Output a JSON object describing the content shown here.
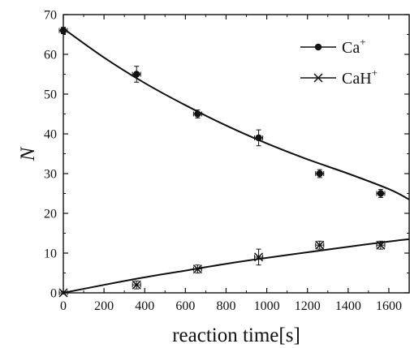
{
  "chart_data": {
    "type": "scatter",
    "title": "",
    "xlabel": "reaction time[s]",
    "ylabel": "N",
    "xlim": [
      0,
      1700
    ],
    "ylim": [
      0,
      70
    ],
    "x_ticks": [
      0,
      200,
      400,
      600,
      800,
      1000,
      1200,
      1400,
      1600
    ],
    "y_ticks": [
      0,
      10,
      20,
      30,
      40,
      50,
      60,
      70
    ],
    "grid": false,
    "legend_position": "top-right",
    "series": [
      {
        "name": "Ca",
        "name_sup": "+",
        "marker": "filled-circle",
        "x": [
          0,
          360,
          660,
          960,
          1260,
          1560
        ],
        "y": [
          66,
          55,
          45,
          39,
          30,
          25
        ],
        "yerr": [
          0.8,
          2,
          1,
          2,
          1,
          1
        ],
        "xerr": [
          20,
          20,
          20,
          20,
          20,
          20
        ],
        "fit": {
          "x": [
            0,
            200,
            400,
            600,
            800,
            1000,
            1200,
            1400,
            1600,
            1700
          ],
          "y": [
            66.5,
            59.2,
            52.8,
            47.2,
            42.1,
            37.6,
            33.6,
            30.0,
            26.1,
            23.5
          ]
        }
      },
      {
        "name": "CaH",
        "name_sup": "+",
        "marker": "x-cross",
        "x": [
          0,
          360,
          660,
          960,
          1260,
          1560
        ],
        "y": [
          0,
          2,
          6,
          9,
          12,
          12
        ],
        "yerr": [
          0.3,
          1,
          1,
          2,
          1,
          1
        ],
        "xerr": [
          20,
          20,
          20,
          20,
          20,
          20
        ],
        "fit": {
          "x": [
            0,
            200,
            400,
            600,
            800,
            1000,
            1200,
            1400,
            1600,
            1700
          ],
          "y": [
            0,
            2.0,
            3.9,
            5.6,
            7.3,
            8.8,
            10.2,
            11.6,
            12.9,
            13.5
          ]
        }
      }
    ]
  }
}
